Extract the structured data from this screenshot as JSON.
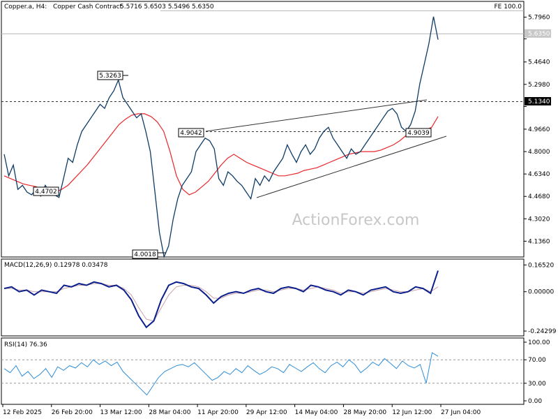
{
  "header": {
    "symbol": "Copper.a, H4:",
    "description": "Copper Cash Contract",
    "ohlc": "5.5716 5.6503 5.5496 5.6350",
    "fe_label": "FE 100.0"
  },
  "watermark": "ActionForex.com",
  "colors": {
    "price": "#0d3b66",
    "ma": "#e8262a",
    "macd": "#0b1f8c",
    "macd_signal": "#c8a0a8",
    "rsi": "#2f8ed8",
    "grid_line": "#bbbbbb",
    "badge_bg": "#000000"
  },
  "chart_data": [
    {
      "type": "line",
      "panel": "price",
      "title": "Copper.a, H4: Copper Cash Contract 5.5716 5.6503 5.5496 5.6350",
      "y_ticks": [
        "5.7960",
        "5.6350",
        "5.4640",
        "5.2980",
        "5.1340",
        "4.9660",
        "4.8000",
        "4.6340",
        "4.4680",
        "4.3020",
        "4.1360"
      ],
      "ylim": [
        4.05,
        5.83
      ],
      "x_ticks": [
        "12 Feb 2025",
        "26 Feb 20:00",
        "13 Mar 12:00",
        "28 Mar 04:00",
        "11 Apr 20:00",
        "29 Apr 12:00",
        "14 May 04:00",
        "28 May 20:00",
        "12 Jun 12:00",
        "27 Jun 04:00"
      ],
      "series": [
        {
          "role": "price",
          "values": [
            4.78,
            4.62,
            4.7,
            4.52,
            4.55,
            4.5,
            4.48,
            4.52,
            4.47,
            4.55,
            4.5,
            4.48,
            4.46,
            4.6,
            4.75,
            4.72,
            4.85,
            4.95,
            5.0,
            5.05,
            5.1,
            5.15,
            5.12,
            5.2,
            5.25,
            5.33,
            5.2,
            5.15,
            5.1,
            5.05,
            5.08,
            4.95,
            4.8,
            4.5,
            4.2,
            4.02,
            4.1,
            4.3,
            4.45,
            4.55,
            4.6,
            4.65,
            4.8,
            4.85,
            4.9,
            4.88,
            4.82,
            4.6,
            4.55,
            4.65,
            4.62,
            4.58,
            4.55,
            4.5,
            4.45,
            4.6,
            4.55,
            4.62,
            4.58,
            4.65,
            4.7,
            4.75,
            4.85,
            4.78,
            4.72,
            4.8,
            4.85,
            4.78,
            4.82,
            4.9,
            4.95,
            4.98,
            4.9,
            4.85,
            4.8,
            4.75,
            4.82,
            4.78,
            4.8,
            4.85,
            4.9,
            4.95,
            5.0,
            5.05,
            5.1,
            5.12,
            5.08,
            4.98,
            4.95,
            5.0,
            5.1,
            5.3,
            5.45,
            5.6,
            5.8,
            5.63
          ]
        },
        {
          "role": "moving-average",
          "values": [
            4.62,
            4.6,
            4.58,
            4.56,
            4.55,
            4.54,
            4.52,
            4.52,
            4.5,
            4.52,
            4.55,
            4.6,
            4.65,
            4.7,
            4.76,
            4.82,
            4.88,
            4.94,
            5.0,
            5.04,
            5.07,
            5.08,
            5.08,
            5.06,
            5.02,
            4.95,
            4.8,
            4.62,
            4.52,
            4.48,
            4.5,
            4.54,
            4.58,
            4.64,
            4.7,
            4.75,
            4.78,
            4.75,
            4.72,
            4.7,
            4.68,
            4.66,
            4.64,
            4.62,
            4.62,
            4.63,
            4.64,
            4.66,
            4.67,
            4.68,
            4.7,
            4.72,
            4.74,
            4.76,
            4.78,
            4.79,
            4.8,
            4.8,
            4.8,
            4.81,
            4.83,
            4.85,
            4.88,
            4.92,
            4.95,
            4.96,
            4.96,
            4.98,
            5.06
          ]
        }
      ],
      "annotations": [
        "5.3263",
        "4.9042",
        "4.4702",
        "4.0018",
        "4.9039",
        "5.6350",
        "5.1340"
      ]
    },
    {
      "type": "line",
      "panel": "macd",
      "title": "MACD(12,26,9) 0.12978 0.03478",
      "y_ticks": [
        "0.16520",
        "0.00000",
        "-0.24299"
      ],
      "ylim": [
        -0.26,
        0.18
      ],
      "series": [
        {
          "role": "macd",
          "values": [
            0.02,
            0.03,
            0.0,
            0.01,
            -0.02,
            0.01,
            0.0,
            -0.01,
            0.04,
            0.03,
            0.05,
            0.04,
            0.06,
            0.05,
            0.03,
            0.04,
            0.01,
            -0.05,
            -0.15,
            -0.22,
            -0.18,
            -0.05,
            0.04,
            0.06,
            0.05,
            0.03,
            0.02,
            -0.02,
            -0.07,
            -0.03,
            -0.01,
            0.0,
            -0.01,
            0.01,
            0.02,
            0.0,
            -0.01,
            0.02,
            0.03,
            0.02,
            0.0,
            0.04,
            0.03,
            0.01,
            0.0,
            -0.02,
            0.01,
            0.0,
            -0.02,
            0.01,
            0.02,
            0.03,
            0.0,
            -0.01,
            0.0,
            0.03,
            0.02,
            -0.01,
            0.13
          ]
        },
        {
          "role": "signal",
          "values": [
            0.02,
            0.02,
            0.01,
            0.01,
            0.0,
            0.0,
            0.0,
            0.0,
            0.02,
            0.03,
            0.04,
            0.04,
            0.05,
            0.05,
            0.04,
            0.04,
            0.02,
            -0.02,
            -0.1,
            -0.17,
            -0.18,
            -0.1,
            -0.02,
            0.03,
            0.04,
            0.04,
            0.03,
            0.0,
            -0.04,
            -0.04,
            -0.02,
            -0.01,
            -0.01,
            0.0,
            0.01,
            0.01,
            0.0,
            0.01,
            0.02,
            0.02,
            0.01,
            0.02,
            0.03,
            0.02,
            0.01,
            -0.01,
            0.0,
            0.0,
            -0.01,
            0.0,
            0.01,
            0.02,
            0.01,
            0.0,
            0.0,
            0.01,
            0.02,
            0.0,
            0.03
          ]
        }
      ]
    },
    {
      "type": "line",
      "panel": "rsi",
      "title": "RSI(14) 76.36",
      "y_ticks": [
        "100.00",
        "70.00",
        "30.00",
        "0.00"
      ],
      "ylim": [
        0,
        100
      ],
      "levels": [
        70,
        30
      ],
      "series": [
        {
          "role": "rsi",
          "values": [
            55,
            48,
            60,
            42,
            50,
            38,
            45,
            55,
            40,
            58,
            52,
            60,
            56,
            65,
            58,
            70,
            62,
            68,
            60,
            66,
            50,
            40,
            30,
            20,
            10,
            25,
            40,
            50,
            55,
            60,
            62,
            58,
            65,
            55,
            45,
            35,
            40,
            50,
            45,
            55,
            48,
            60,
            52,
            45,
            50,
            58,
            55,
            48,
            62,
            56,
            50,
            58,
            65,
            55,
            48,
            60,
            66,
            58,
            70,
            62,
            48,
            56,
            66,
            60,
            72,
            64,
            55,
            68,
            60,
            56,
            62,
            30,
            82,
            76
          ]
        }
      ]
    }
  ]
}
